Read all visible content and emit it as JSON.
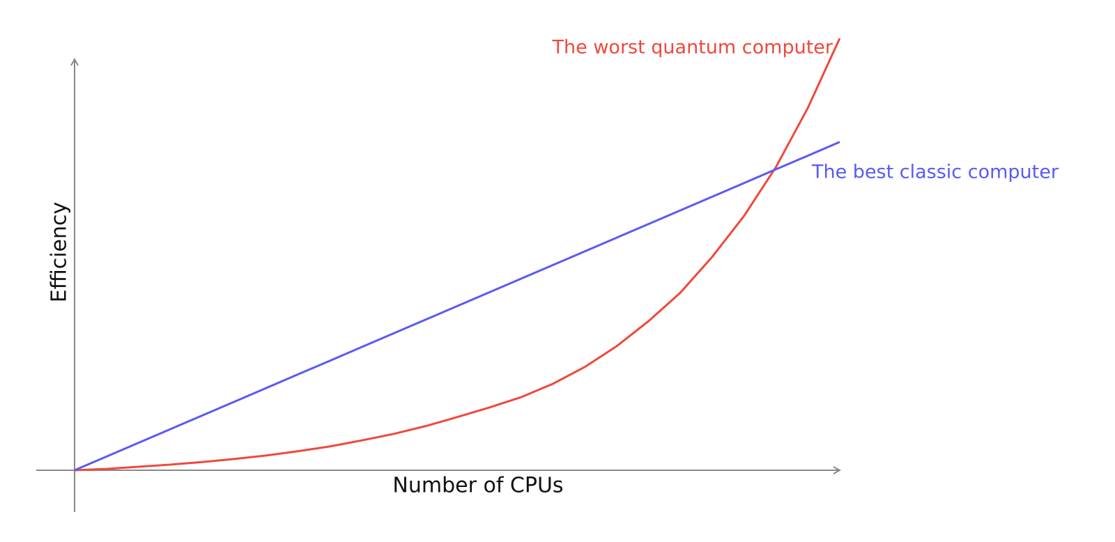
{
  "chart_data": {
    "type": "line",
    "x_label": "Number of CPUs",
    "y_label": "Efficiency",
    "x": [
      0,
      1,
      2,
      3,
      4,
      5,
      6,
      7,
      8,
      9,
      10,
      11,
      12,
      13,
      14,
      15,
      16,
      17,
      18,
      19,
      20,
      21,
      22,
      23,
      24
    ],
    "xlim": [
      0,
      24
    ],
    "ylim": [
      0,
      100
    ],
    "series": [
      {
        "name": "The worst quantum computer",
        "color": "#f0483c",
        "values": [
          0,
          0.3,
          0.8,
          1.3,
          1.9,
          2.6,
          3.4,
          4.4,
          5.5,
          6.9,
          8.4,
          10.2,
          12.3,
          14.5,
          16.9,
          20,
          23.9,
          28.7,
          34.5,
          41.1,
          49.4,
          58.9,
          70.2,
          83.9,
          100
        ]
      },
      {
        "name": "The best classic computer",
        "color": "#5a5af5",
        "values": [
          0,
          3.17,
          6.33,
          9.5,
          12.67,
          15.83,
          19,
          22.17,
          25.33,
          28.5,
          31.67,
          34.83,
          38,
          41.17,
          44.33,
          47.5,
          50.67,
          53.83,
          57,
          60.17,
          63.33,
          66.5,
          69.67,
          72.83,
          76
        ]
      }
    ]
  }
}
